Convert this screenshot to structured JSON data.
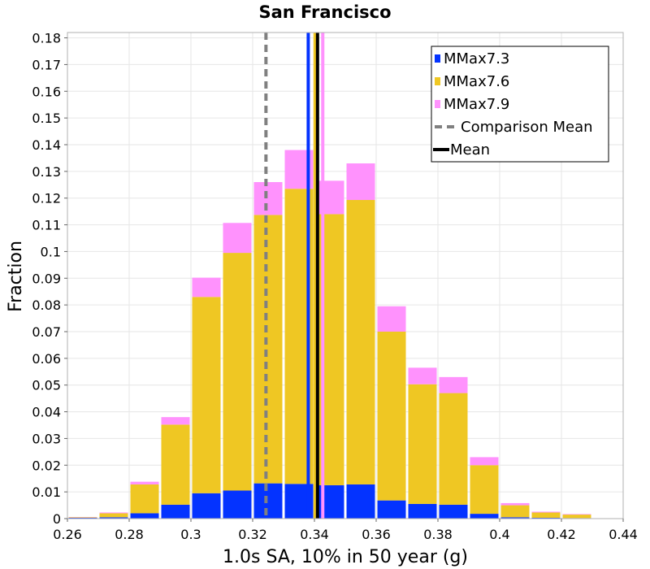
{
  "chart_data": {
    "type": "bar",
    "stacked": true,
    "title": "San Francisco",
    "xlabel": "1.0s SA, 10% in 50 year (g)",
    "ylabel": "Fraction",
    "xlim": [
      0.26,
      0.44
    ],
    "ylim": [
      0,
      0.182
    ],
    "xticks": [
      0.26,
      0.28,
      0.3,
      0.32,
      0.34,
      0.36,
      0.38,
      0.4,
      0.42,
      0.44
    ],
    "xtick_labels": [
      "0.26",
      "0.28",
      "0.3",
      "0.32",
      "0.34",
      "0.36",
      "0.38",
      "0.4",
      "0.42",
      "0.44"
    ],
    "yticks": [
      0,
      0.01,
      0.02,
      0.03,
      0.04,
      0.05,
      0.06,
      0.07,
      0.08,
      0.09,
      0.1,
      0.11,
      0.12,
      0.13,
      0.14,
      0.15,
      0.16,
      0.17,
      0.18
    ],
    "ytick_labels": [
      "0",
      "0.01",
      "0.02",
      "0.03",
      "0.04",
      "0.05",
      "0.06",
      "0.07",
      "0.08",
      "0.09",
      "0.1",
      "0.11",
      "0.12",
      "0.13",
      "0.14",
      "0.15",
      "0.16",
      "0.17",
      "0.18"
    ],
    "bin_width": 0.01,
    "bins_left": [
      0.26,
      0.27,
      0.28,
      0.29,
      0.3,
      0.31,
      0.32,
      0.33,
      0.34,
      0.35,
      0.36,
      0.37,
      0.38,
      0.39,
      0.4,
      0.41,
      0.42
    ],
    "series": [
      {
        "name": "MMax7.3",
        "color": "#0433ff",
        "values": [
          0.0003,
          0.0005,
          0.002,
          0.0052,
          0.0095,
          0.0105,
          0.0132,
          0.013,
          0.0125,
          0.0128,
          0.0068,
          0.0055,
          0.0052,
          0.0018,
          0.0005,
          0.0003,
          0.0002
        ]
      },
      {
        "name": "MMax7.6",
        "color": "#efc723",
        "values": [
          0.0002,
          0.0015,
          0.0108,
          0.03,
          0.0735,
          0.089,
          0.1005,
          0.1105,
          0.1015,
          0.1065,
          0.0632,
          0.0448,
          0.0418,
          0.0182,
          0.0045,
          0.002,
          0.0013
        ]
      },
      {
        "name": "MMax7.9",
        "color": "#ff92fd",
        "values": [
          0.0001,
          0.0003,
          0.001,
          0.0028,
          0.0072,
          0.0112,
          0.0123,
          0.0145,
          0.0125,
          0.0137,
          0.0095,
          0.0062,
          0.006,
          0.003,
          0.0008,
          0.0003,
          0.0002
        ]
      }
    ],
    "reference_lines": [
      {
        "name": "Comparison Mean",
        "x": 0.3243,
        "color": "#808080",
        "style": "dashed"
      },
      {
        "name": "Mean",
        "x": 0.341,
        "color": "#000000",
        "style": "solid"
      },
      {
        "name": "MMax7.3 mean",
        "x": 0.338,
        "color": "#0433ff",
        "style": "solid"
      },
      {
        "name": "MMax7.6 mean",
        "x": 0.3402,
        "color": "#efc723",
        "style": "solid"
      },
      {
        "name": "MMax7.9 mean",
        "x": 0.3427,
        "color": "#ff92fd",
        "style": "solid"
      }
    ],
    "legend": {
      "position": "top-right",
      "entries": [
        {
          "label": "MMax7.3",
          "kind": "patch",
          "color": "#0433ff"
        },
        {
          "label": "MMax7.6",
          "kind": "patch",
          "color": "#efc723"
        },
        {
          "label": "MMax7.9",
          "kind": "patch",
          "color": "#ff92fd"
        },
        {
          "label": "Comparison Mean",
          "kind": "dashed",
          "color": "#808080"
        },
        {
          "label": "Mean",
          "kind": "line",
          "color": "#000000"
        }
      ]
    }
  }
}
